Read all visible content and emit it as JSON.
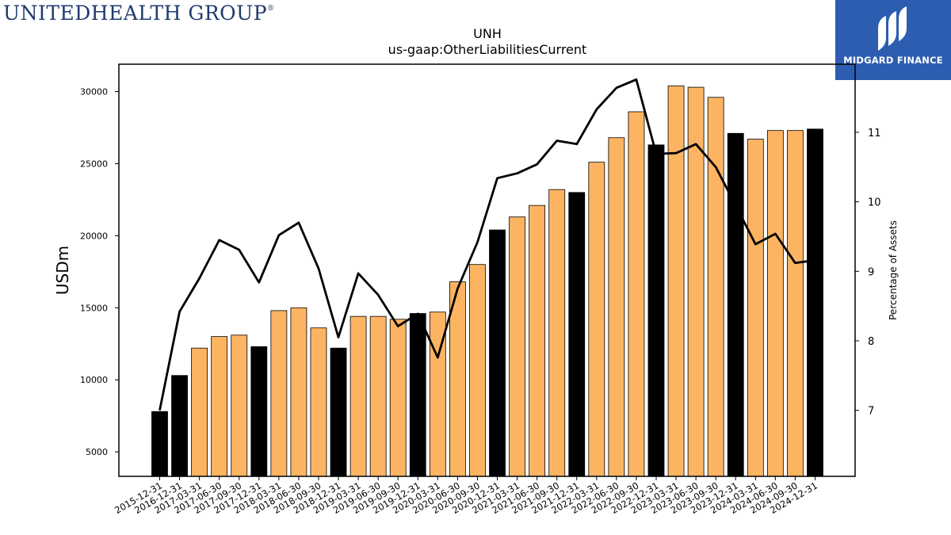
{
  "logo_left": {
    "text": "UNITEDHEALTH GROUP",
    "registered": "®"
  },
  "logo_right": {
    "name": "MIDGARD FINANCE",
    "color": "#2d5db0"
  },
  "chart_data": {
    "type": "bar",
    "title": "UNH",
    "subtitle": "us-gaap:OtherLiabilitiesCurrent",
    "ylabel": "USDm",
    "y2label": "Percentage of Assets",
    "ylim": [
      3300,
      31900
    ],
    "y2lim": [
      6.05,
      11.98
    ],
    "yticks": [
      5000,
      10000,
      15000,
      20000,
      25000,
      30000
    ],
    "y2ticks": [
      7,
      8,
      9,
      10,
      11
    ],
    "grid": false,
    "colors": {
      "annual": "#000000",
      "quarterly": "#fdb462",
      "line": "#000000"
    },
    "categories": [
      "2015-12-31",
      "2016-12-31",
      "2017-03-31",
      "2017-06-30",
      "2017-09-30",
      "2017-12-31",
      "2018-03-31",
      "2018-06-30",
      "2018-09-30",
      "2018-12-31",
      "2019-03-31",
      "2019-06-30",
      "2019-09-30",
      "2019-12-31",
      "2020-03-31",
      "2020-06-30",
      "2020-09-30",
      "2020-12-31",
      "2021-03-31",
      "2021-06-30",
      "2021-09-30",
      "2021-12-31",
      "2022-03-31",
      "2022-06-30",
      "2022-09-30",
      "2022-12-31",
      "2023-03-31",
      "2023-06-30",
      "2023-09-30",
      "2023-12-31",
      "2024-03-31",
      "2024-06-30",
      "2024-09-30",
      "2024-12-31"
    ],
    "annual_flags": [
      true,
      true,
      false,
      false,
      false,
      true,
      false,
      false,
      false,
      true,
      false,
      false,
      false,
      true,
      false,
      false,
      false,
      true,
      false,
      false,
      false,
      true,
      false,
      false,
      false,
      true,
      false,
      false,
      false,
      true,
      false,
      false,
      false,
      true
    ],
    "series": [
      {
        "name": "OtherLiabilitiesCurrent",
        "axis": "left",
        "values": [
          7800,
          10300,
          12200,
          13000,
          13100,
          12300,
          14800,
          15000,
          13600,
          12200,
          14400,
          14400,
          14200,
          14600,
          14700,
          16800,
          18000,
          20400,
          21300,
          22100,
          23200,
          23000,
          25100,
          26800,
          28600,
          26300,
          30400,
          30300,
          29600,
          27100,
          26700,
          27300,
          27300,
          27400
        ]
      },
      {
        "name": "Percentage of Assets",
        "axis": "right",
        "values": [
          7.0,
          8.42,
          8.9,
          9.45,
          9.31,
          8.84,
          9.52,
          9.7,
          9.04,
          8.05,
          8.97,
          8.66,
          8.21,
          8.39,
          7.76,
          8.75,
          9.42,
          10.34,
          10.41,
          10.54,
          10.88,
          10.83,
          11.33,
          11.64,
          11.76,
          10.69,
          10.7,
          10.83,
          10.5,
          9.95,
          9.39,
          9.54,
          9.12,
          9.16
        ]
      }
    ]
  }
}
